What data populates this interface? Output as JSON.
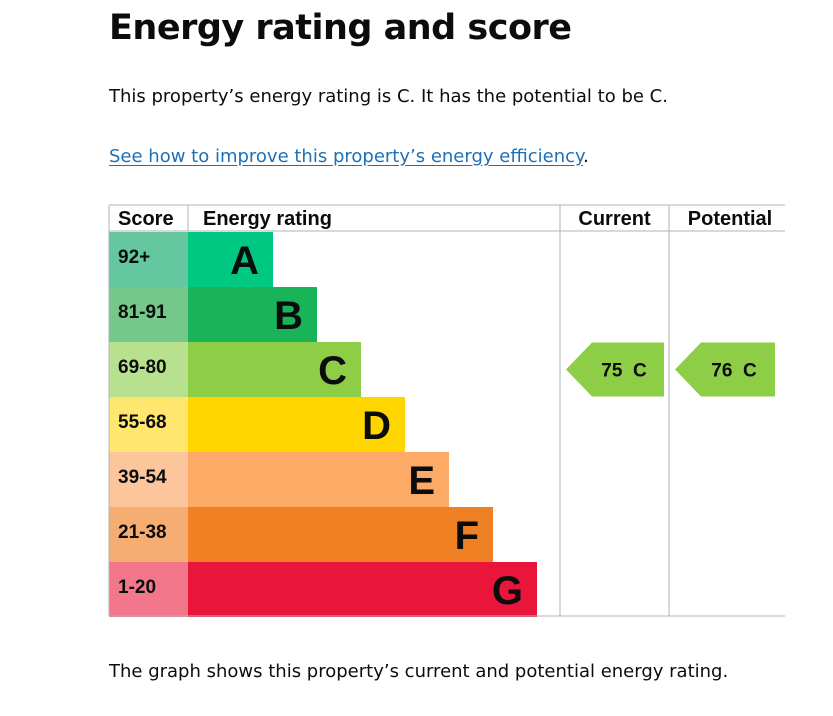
{
  "page": {
    "title": "Energy rating and score",
    "summary": "This property’s energy rating is C. It has the potential to be C.",
    "improve_link": "See how to improve this property’s energy efficiency",
    "improve_link_suffix": ".",
    "footnote": "The graph shows this property’s current and potential energy rating."
  },
  "chart_data": {
    "type": "bar",
    "headers": {
      "score": "Score",
      "rating": "Energy rating",
      "current": "Current",
      "potential": "Potential"
    },
    "bands": [
      {
        "letter": "A",
        "score": "92+",
        "bar_color": "#00c781",
        "score_color": "#64c7a0"
      },
      {
        "letter": "B",
        "score": "81-91",
        "bar_color": "#19b459",
        "score_color": "#74c98a"
      },
      {
        "letter": "C",
        "score": "69-80",
        "bar_color": "#8dce46",
        "score_color": "#b8e18f"
      },
      {
        "letter": "D",
        "score": "55-68",
        "bar_color": "#ffd500",
        "score_color": "#ffe66f"
      },
      {
        "letter": "E",
        "score": "39-54",
        "bar_color": "#fcaa65",
        "score_color": "#fdc59b"
      },
      {
        "letter": "F",
        "score": "21-38",
        "bar_color": "#ef8023",
        "score_color": "#f5ad72"
      },
      {
        "letter": "G",
        "score": "1-20",
        "bar_color": "#e9153b",
        "score_color": "#f2778b"
      }
    ],
    "current": {
      "score": 75,
      "band": "C",
      "label": "75  C",
      "color": "#8dce46"
    },
    "potential": {
      "score": 76,
      "band": "C",
      "label": "76  C",
      "color": "#8dce46"
    }
  }
}
